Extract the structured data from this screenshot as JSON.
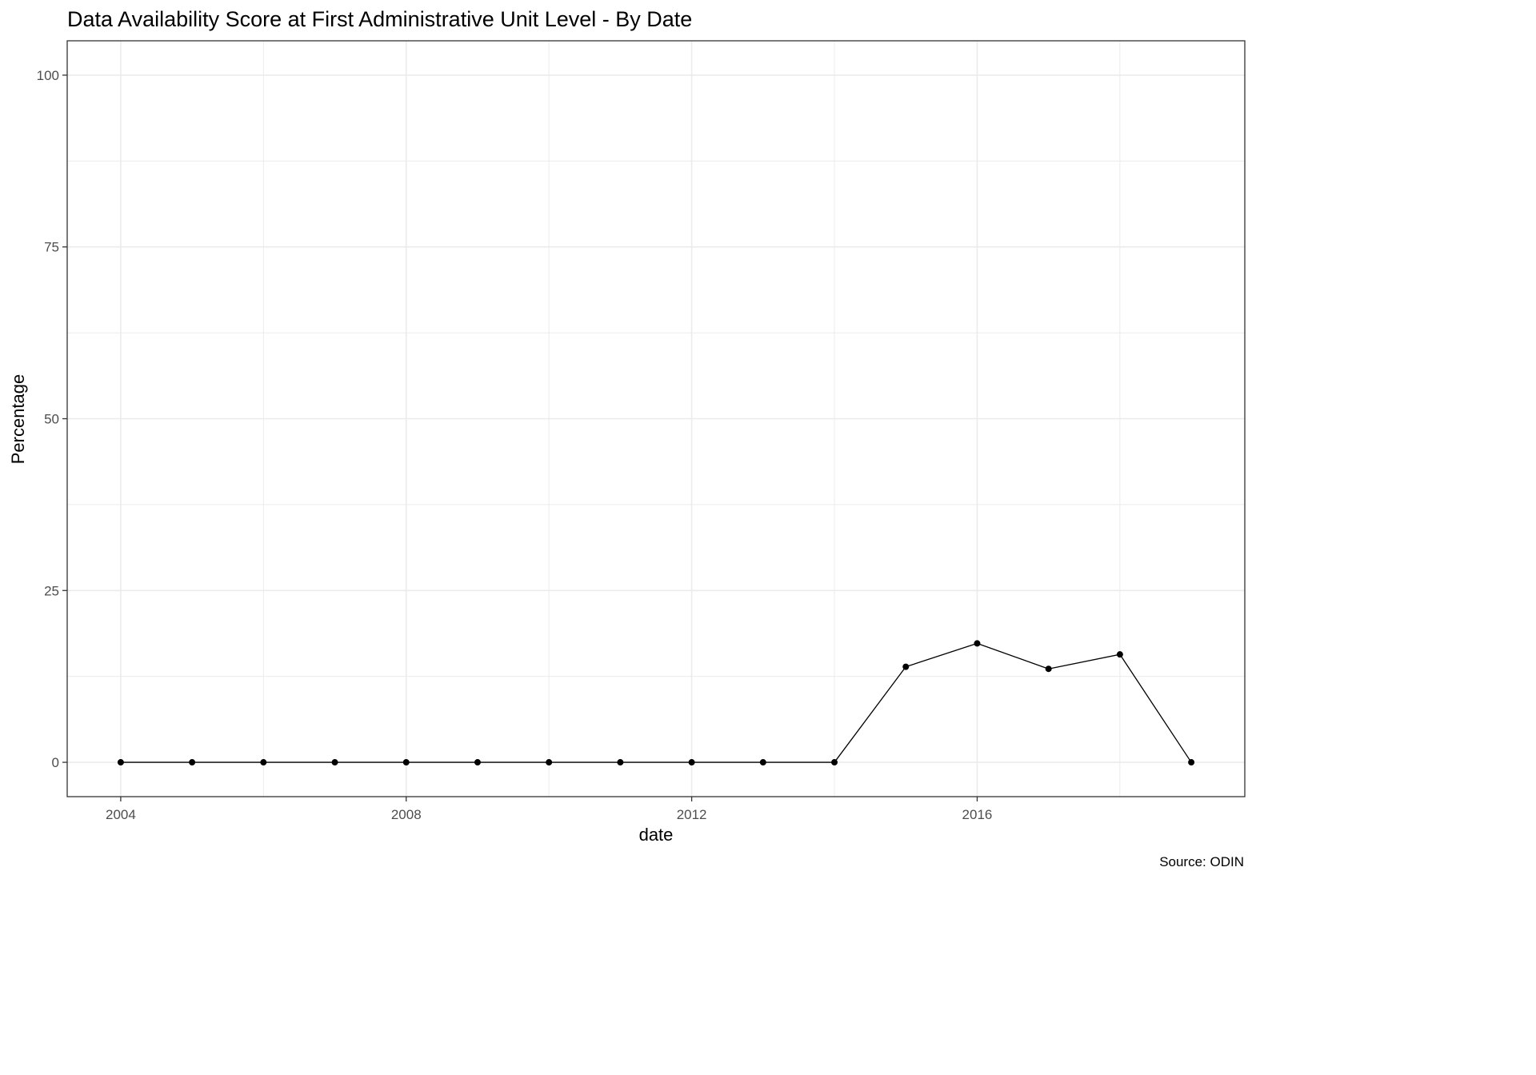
{
  "chart_data": {
    "type": "line",
    "title": "Data Availability Score at First Administrative Unit Level - By Date",
    "xlabel": "date",
    "ylabel": "Percentage",
    "caption": "Source: ODIN",
    "xlim": [
      2003.25,
      2019.75
    ],
    "ylim": [
      -5,
      105
    ],
    "x_ticks": [
      2004,
      2008,
      2012,
      2016
    ],
    "x_tick_labels": [
      "2004",
      "2008",
      "2012",
      "2016"
    ],
    "y_ticks": [
      0,
      25,
      50,
      75,
      100
    ],
    "y_tick_labels": [
      "0",
      "25",
      "50",
      "75",
      "100"
    ],
    "x_minor_ticks": [
      2006,
      2010,
      2014,
      2018
    ],
    "y_minor_ticks": [
      12.5,
      37.5,
      62.5,
      87.5
    ],
    "grid": true,
    "legend": "none",
    "x": [
      2004,
      2005,
      2006,
      2007,
      2008,
      2009,
      2010,
      2011,
      2012,
      2013,
      2014,
      2015,
      2016,
      2017,
      2018,
      2019
    ],
    "y": [
      0,
      0,
      0,
      0,
      0,
      0,
      0,
      0,
      0,
      0,
      0,
      13.9,
      17.3,
      13.6,
      15.7,
      0
    ],
    "colors": {
      "line": "#000000",
      "point": "#000000",
      "grid": "#ebebeb",
      "panel_border": "#333333",
      "axis_text": "#4d4d4d",
      "title_text": "#000000"
    }
  }
}
